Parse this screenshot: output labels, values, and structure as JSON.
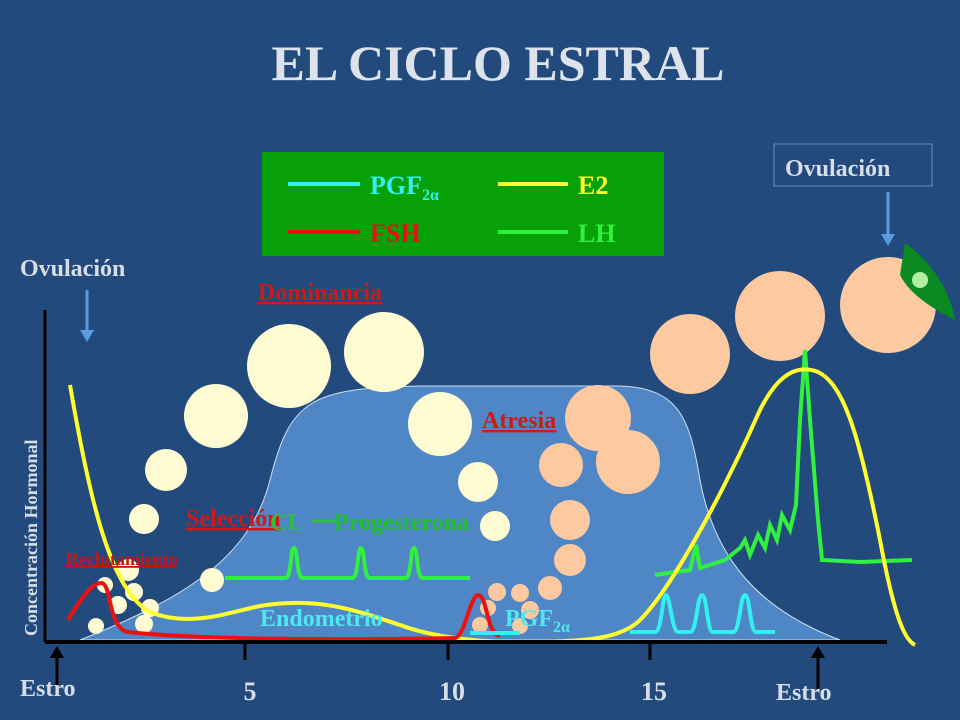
{
  "title": "EL CICLO ESTRAL",
  "legend": [
    {
      "label": "PGF",
      "sub": "2α"
    },
    {
      "label": "E2"
    },
    {
      "label": "FSH"
    },
    {
      "label": "LH"
    }
  ],
  "labels": {
    "ovulation_left": "Ovulación",
    "ovulation_right": "Ovulación",
    "dominance": "Dominancia",
    "atresia": "Atresia",
    "selection": "Selección",
    "recruitment": "Reclutamiento",
    "cl": "CL",
    "progesterone": "Progesterona",
    "endometrium": "Endometrio",
    "pgf": "PGF",
    "pgf_sub": "2α"
  },
  "y_axis_label": "Concentración Hormonal",
  "x_axis": {
    "start": "Estro",
    "ticks": [
      "5",
      "10",
      "15"
    ],
    "end": "Estro"
  }
}
